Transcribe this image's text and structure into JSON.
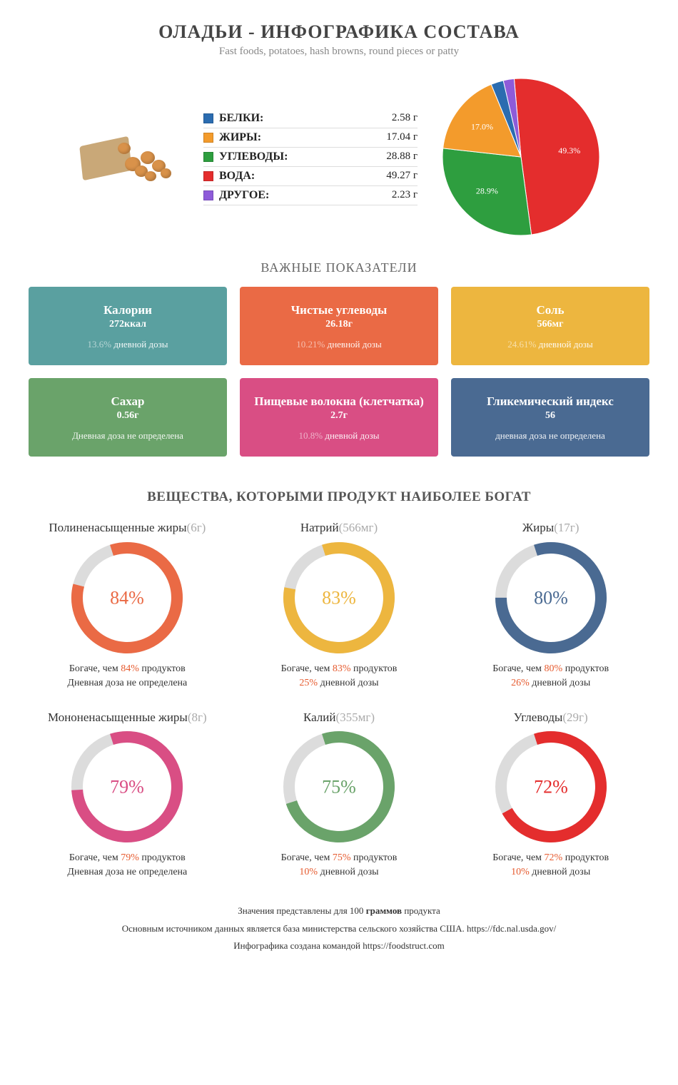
{
  "header": {
    "title": "ОЛАДЬИ - ИНФОГРАФИКА СОСТАВА",
    "subtitle": "Fast foods, potatoes, hash browns, round pieces or patty"
  },
  "composition": {
    "items": [
      {
        "label": "БЕЛКИ:",
        "value": "2.58 г",
        "color": "#2b6cb0",
        "pct": 2.58
      },
      {
        "label": "ЖИРЫ:",
        "value": "17.04 г",
        "color": "#f39b2c",
        "pct": 17.04
      },
      {
        "label": "УГЛЕВОДЫ:",
        "value": "28.88 г",
        "color": "#2e9e3f",
        "pct": 28.88
      },
      {
        "label": "ВОДА:",
        "value": "49.27 г",
        "color": "#e42d2d",
        "pct": 49.27
      },
      {
        "label": "ДРУГОЕ:",
        "value": "2.23 г",
        "color": "#8e5bd9",
        "pct": 2.23
      }
    ],
    "pie_labels": [
      "17.0%",
      "28.9%",
      "49.3%"
    ],
    "pie_size": 230
  },
  "indicators": {
    "heading": "ВАЖНЫЕ ПОКАЗАТЕЛИ",
    "cards": [
      {
        "title": "Калории",
        "value": "272ккал",
        "dose_pct": "13.6%",
        "dose_text": "дневной дозы",
        "bg": "#5aa0a0"
      },
      {
        "title": "Чистые углеводы",
        "value": "26.18г",
        "dose_pct": "10.21%",
        "dose_text": "дневной дозы",
        "bg": "#ea6a45"
      },
      {
        "title": "Соль",
        "value": "566мг",
        "dose_pct": "24.61%",
        "dose_text": "дневной дозы",
        "bg": "#edb63f"
      },
      {
        "title": "Сахар",
        "value": "0.56г",
        "dose_pct": "",
        "dose_text": "Дневная доза не определена",
        "bg": "#6aa36a"
      },
      {
        "title": "Пищевые волокна (клетчатка)",
        "value": "2.7г",
        "dose_pct": "10.8%",
        "dose_text": "дневной дозы",
        "bg": "#d94e84"
      },
      {
        "title": "Гликемический индекс",
        "value": "56",
        "dose_pct": "",
        "dose_text": "дневная доза не определена",
        "bg": "#4a6a92"
      }
    ]
  },
  "richest": {
    "heading": "ВЕЩЕСТВА, КОТОРЫМИ ПРОДУКТ НАИБОЛЕЕ БОГАТ",
    "ring_bg": "#dcdcdc",
    "ring_width": 16,
    "ring_radius": 70,
    "items": [
      {
        "name": "Полиненасыщенные жиры",
        "amount": "(6г)",
        "pct": 84,
        "color": "#ea6a45",
        "line1a": "Богаче, чем ",
        "line1b": "84%",
        "line1c": " продуктов",
        "line2a": "Дневная доза не определена",
        "line2b": "",
        "line2c": ""
      },
      {
        "name": "Натрий",
        "amount": "(566мг)",
        "pct": 83,
        "color": "#edb63f",
        "line1a": "Богаче, чем ",
        "line1b": "83%",
        "line1c": " продуктов",
        "line2a": "",
        "line2b": "25%",
        "line2c": " дневной дозы"
      },
      {
        "name": "Жиры",
        "amount": "(17г)",
        "pct": 80,
        "color": "#4a6a92",
        "line1a": "Богаче, чем ",
        "line1b": "80%",
        "line1c": " продуктов",
        "line2a": "",
        "line2b": "26%",
        "line2c": " дневной дозы"
      },
      {
        "name": "Мононенасыщенные жиры",
        "amount": "(8г)",
        "pct": 79,
        "color": "#d94e84",
        "line1a": "Богаче, чем ",
        "line1b": "79%",
        "line1c": " продуктов",
        "line2a": "Дневная доза не определена",
        "line2b": "",
        "line2c": ""
      },
      {
        "name": "Калий",
        "amount": "(355мг)",
        "pct": 75,
        "color": "#6aa36a",
        "line1a": "Богаче, чем ",
        "line1b": "75%",
        "line1c": " продуктов",
        "line2a": "",
        "line2b": "10%",
        "line2c": " дневной дозы"
      },
      {
        "name": "Углеводы",
        "amount": "(29г)",
        "pct": 72,
        "color": "#e42d2d",
        "line1a": "Богаче, чем ",
        "line1b": "72%",
        "line1c": " продуктов",
        "line2a": "",
        "line2b": "10%",
        "line2c": " дневной дозы"
      }
    ]
  },
  "footer": {
    "l1a": "Значения представлены для 100 ",
    "l1b": "граммов",
    "l1c": " продукта",
    "l2": "Основным источником данных является база министерства сельского хозяйства США. https://fdc.nal.usda.gov/",
    "l3": "Инфографика создана командой https://foodstruct.com"
  }
}
